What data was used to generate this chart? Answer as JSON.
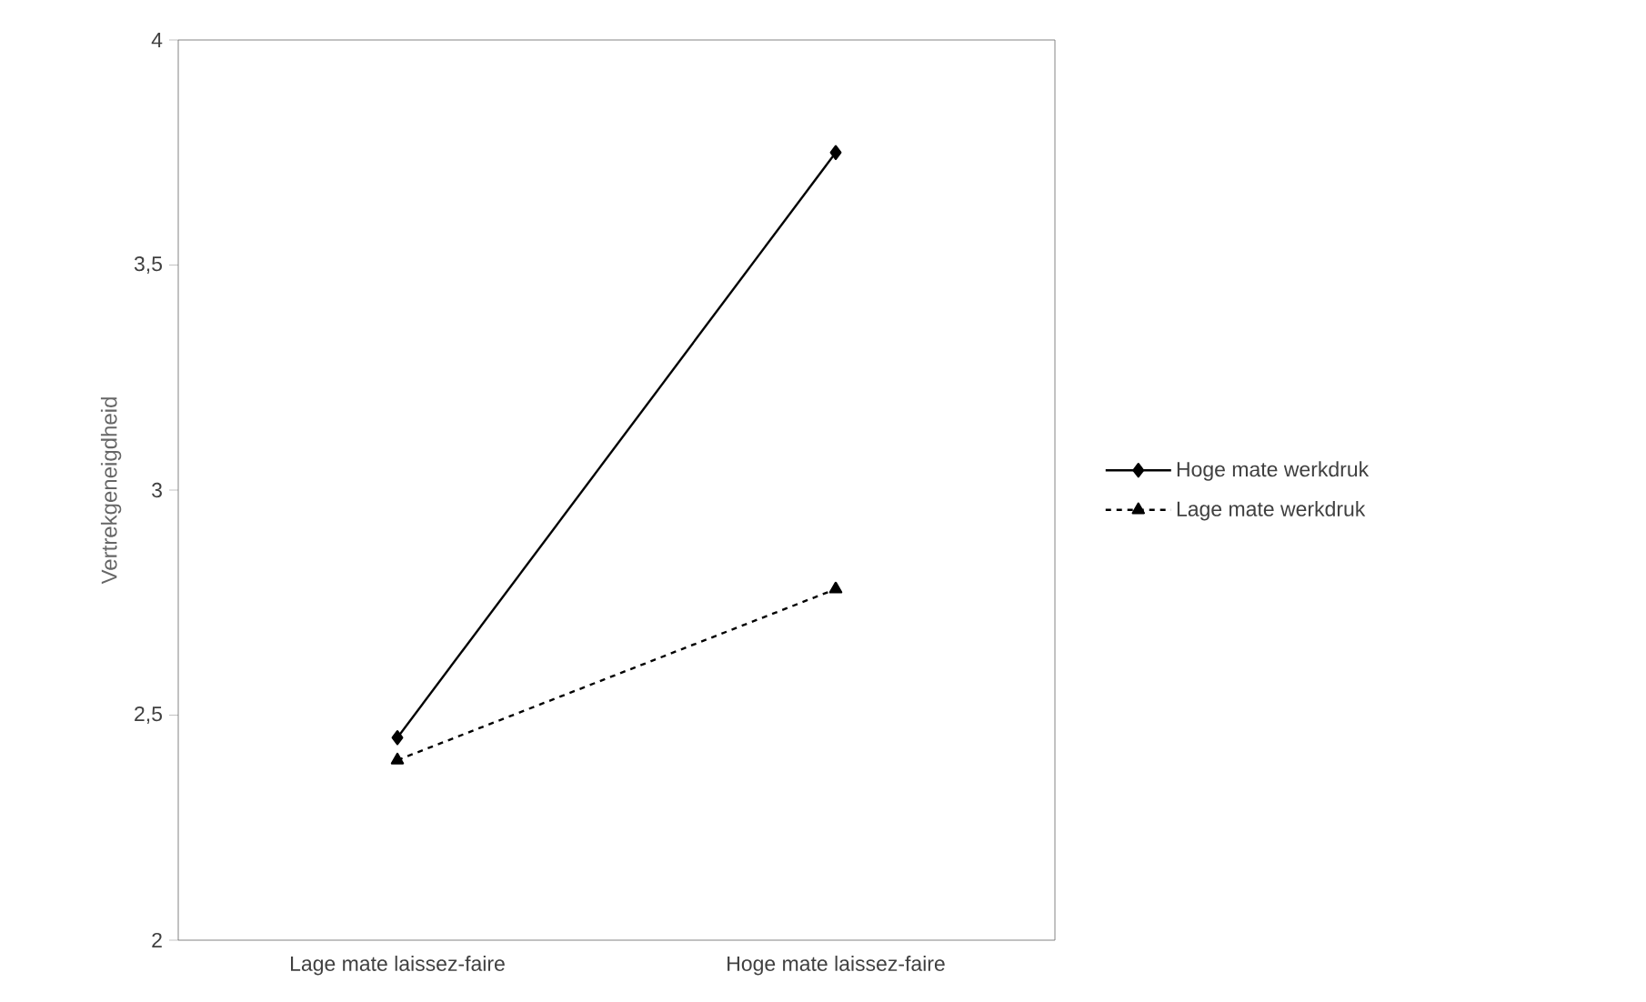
{
  "chart_data": {
    "type": "line",
    "ylabel": "Vertrekgeneigdheid",
    "categories": [
      "Lage mate laissez-faire",
      "Hoge mate laissez-faire"
    ],
    "series": [
      {
        "name": "Hoge mate werkdruk",
        "color": "#000000",
        "values": [
          2.45,
          3.75
        ],
        "marker": "diamond",
        "line_style": "solid"
      },
      {
        "name": "Lage mate werkdruk",
        "color": "#000000",
        "values": [
          2.4,
          2.78
        ],
        "marker": "triangle",
        "line_style": "dashed"
      }
    ],
    "ylim": [
      2,
      4
    ],
    "yticks": [
      2,
      {
        "value": 2.5,
        "label": "2,5"
      },
      3,
      {
        "value": 3.5,
        "label": "3,5"
      },
      4
    ],
    "grid": false,
    "legend": "right"
  }
}
